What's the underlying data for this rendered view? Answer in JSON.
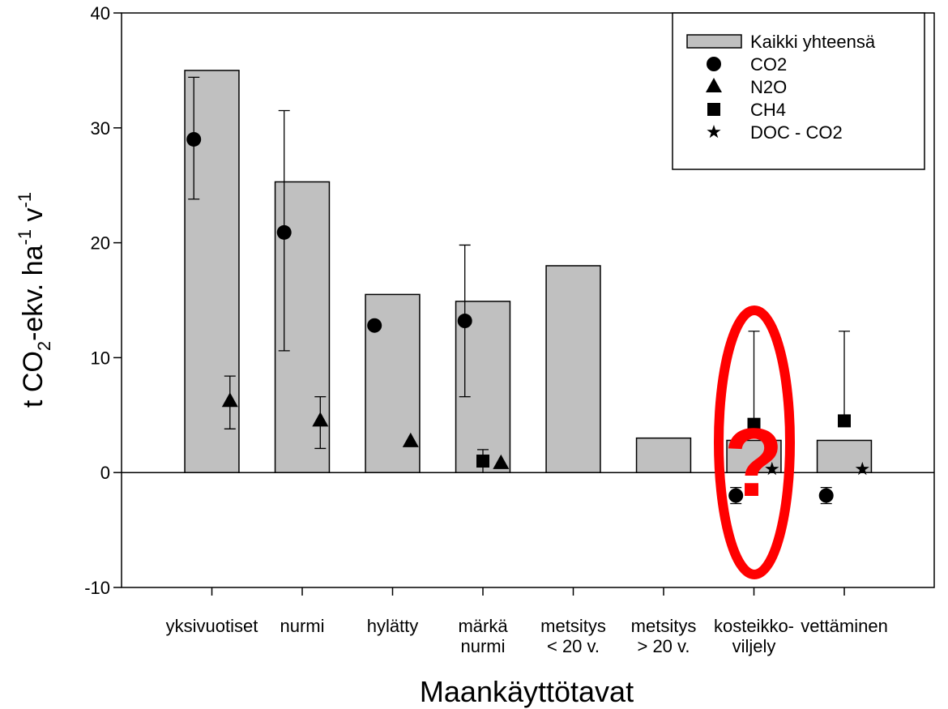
{
  "chart_data": {
    "type": "bar",
    "y_label": [
      "t CO",
      "2",
      "-ekv. ha",
      "-1",
      " v",
      "-1"
    ],
    "x_label": "Maankäyttötavat",
    "annotation": "?",
    "categories": [
      [
        "yksivuotiset"
      ],
      [
        "nurmi"
      ],
      [
        "hylätty"
      ],
      [
        "märkä",
        "nurmi"
      ],
      [
        "metsitys",
        "< 20 v."
      ],
      [
        "metsitys",
        "> 20 v."
      ],
      [
        "kosteikko-",
        "viljely"
      ],
      [
        "vettäminen"
      ]
    ],
    "ylim": [
      -10,
      40
    ],
    "yticks": [
      -10,
      0,
      10,
      20,
      30,
      40
    ],
    "zero_line": true,
    "series": [
      {
        "name": "Kaikki yhteensä",
        "marker": "bar",
        "color": "#c0c0c0",
        "values": [
          35,
          25.3,
          15.5,
          14.9,
          18,
          3,
          2.8,
          2.8
        ]
      },
      {
        "name": "CO2",
        "marker": "circle",
        "color": "#000000",
        "values": [
          29,
          20.9,
          12.8,
          13.2,
          null,
          null,
          -2,
          -2
        ],
        "errors_plus": [
          5.4,
          10.6,
          null,
          6.6,
          null,
          null,
          0.7,
          0.7
        ],
        "errors_minus": [
          5.2,
          10.3,
          null,
          6.6,
          null,
          null,
          0.7,
          0.7
        ]
      },
      {
        "name": "N2O",
        "marker": "triangle",
        "color": "#000000",
        "values": [
          6.2,
          4.5,
          2.7,
          0.8,
          null,
          null,
          null,
          null
        ],
        "errors_plus": [
          2.2,
          2.1,
          null,
          null,
          null,
          null,
          null,
          null
        ],
        "errors_minus": [
          2.4,
          2.4,
          null,
          null,
          null,
          null,
          null,
          null
        ]
      },
      {
        "name": "CH4",
        "marker": "square",
        "color": "#000000",
        "values": [
          null,
          null,
          null,
          1.0,
          null,
          null,
          4.2,
          4.5
        ],
        "errors_plus": [
          null,
          null,
          null,
          1.0,
          null,
          null,
          8.1,
          7.8
        ],
        "errors_minus": [
          null,
          null,
          null,
          1.0,
          null,
          null,
          null,
          null
        ]
      },
      {
        "name": "DOC - CO2",
        "marker": "star",
        "color": "#000000",
        "values": [
          null,
          null,
          null,
          null,
          null,
          null,
          0.3,
          0.3
        ]
      }
    ]
  }
}
